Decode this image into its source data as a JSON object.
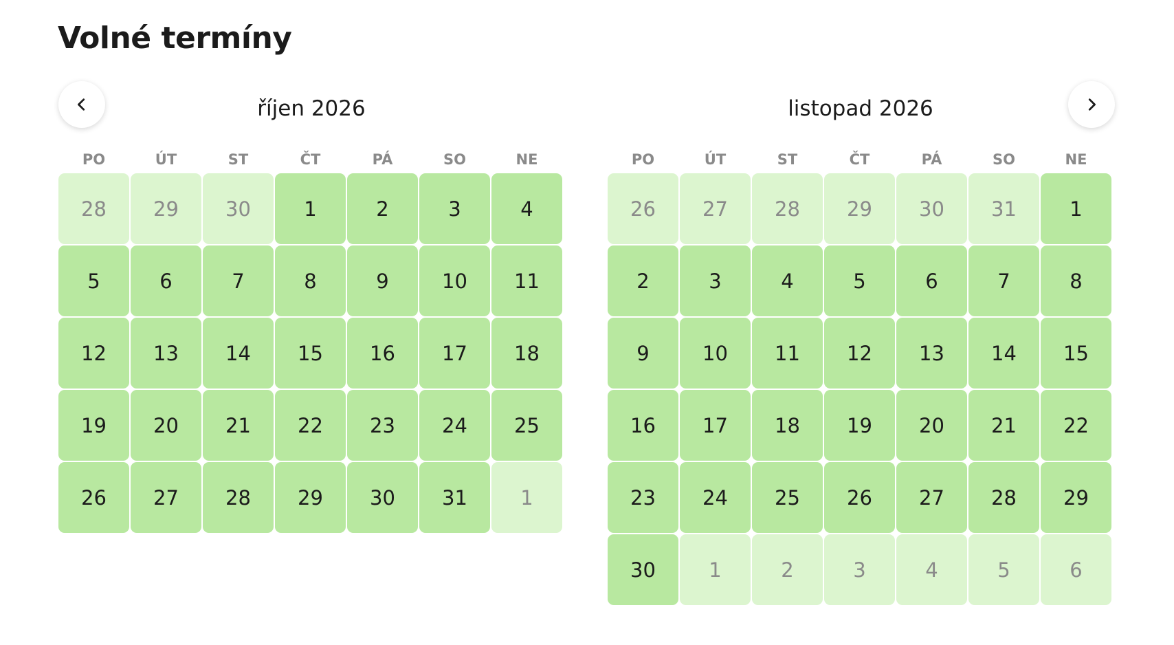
{
  "page": {
    "title": "Volné termíny"
  },
  "colors": {
    "available": "#b8e8a0",
    "outside_month": "#dcf5cf",
    "text": "#1b1b1b",
    "muted": "#8a8a8a"
  },
  "nav": {
    "prev_icon": "chevron-left-icon",
    "next_icon": "chevron-right-icon"
  },
  "weekdays": [
    "PO",
    "ÚT",
    "ST",
    "ČT",
    "PÁ",
    "SO",
    "NE"
  ],
  "months": [
    {
      "title": "říjen 2026",
      "days": [
        {
          "d": "28",
          "other": true
        },
        {
          "d": "29",
          "other": true
        },
        {
          "d": "30",
          "other": true
        },
        {
          "d": "1"
        },
        {
          "d": "2"
        },
        {
          "d": "3"
        },
        {
          "d": "4"
        },
        {
          "d": "5"
        },
        {
          "d": "6"
        },
        {
          "d": "7"
        },
        {
          "d": "8"
        },
        {
          "d": "9"
        },
        {
          "d": "10"
        },
        {
          "d": "11"
        },
        {
          "d": "12"
        },
        {
          "d": "13"
        },
        {
          "d": "14"
        },
        {
          "d": "15"
        },
        {
          "d": "16"
        },
        {
          "d": "17"
        },
        {
          "d": "18"
        },
        {
          "d": "19"
        },
        {
          "d": "20"
        },
        {
          "d": "21"
        },
        {
          "d": "22"
        },
        {
          "d": "23"
        },
        {
          "d": "24"
        },
        {
          "d": "25"
        },
        {
          "d": "26"
        },
        {
          "d": "27"
        },
        {
          "d": "28"
        },
        {
          "d": "29"
        },
        {
          "d": "30"
        },
        {
          "d": "31"
        },
        {
          "d": "1",
          "other": true
        }
      ]
    },
    {
      "title": "listopad 2026",
      "days": [
        {
          "d": "26",
          "other": true
        },
        {
          "d": "27",
          "other": true
        },
        {
          "d": "28",
          "other": true
        },
        {
          "d": "29",
          "other": true
        },
        {
          "d": "30",
          "other": true
        },
        {
          "d": "31",
          "other": true
        },
        {
          "d": "1"
        },
        {
          "d": "2"
        },
        {
          "d": "3"
        },
        {
          "d": "4"
        },
        {
          "d": "5"
        },
        {
          "d": "6"
        },
        {
          "d": "7"
        },
        {
          "d": "8"
        },
        {
          "d": "9"
        },
        {
          "d": "10"
        },
        {
          "d": "11"
        },
        {
          "d": "12"
        },
        {
          "d": "13"
        },
        {
          "d": "14"
        },
        {
          "d": "15"
        },
        {
          "d": "16"
        },
        {
          "d": "17"
        },
        {
          "d": "18"
        },
        {
          "d": "19"
        },
        {
          "d": "20"
        },
        {
          "d": "21"
        },
        {
          "d": "22"
        },
        {
          "d": "23"
        },
        {
          "d": "24"
        },
        {
          "d": "25"
        },
        {
          "d": "26"
        },
        {
          "d": "27"
        },
        {
          "d": "28"
        },
        {
          "d": "29"
        },
        {
          "d": "30"
        },
        {
          "d": "1",
          "other": true
        },
        {
          "d": "2",
          "other": true
        },
        {
          "d": "3",
          "other": true
        },
        {
          "d": "4",
          "other": true
        },
        {
          "d": "5",
          "other": true
        },
        {
          "d": "6",
          "other": true
        }
      ]
    }
  ]
}
